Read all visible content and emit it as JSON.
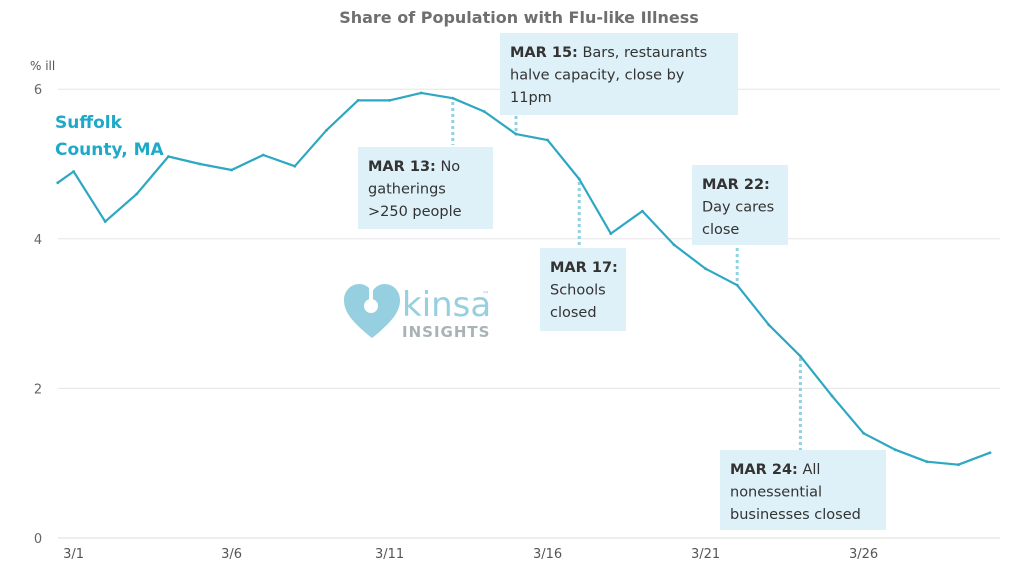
{
  "chart_data": {
    "type": "line",
    "title": "Share of Population with Flu-like Illness",
    "ylabel": "% ill",
    "xlabel": "",
    "ylim": [
      0,
      6
    ],
    "yticks": [
      "0",
      "2",
      "4",
      "6"
    ],
    "grid": true,
    "x_tick_labels": [
      "3/1",
      "3/6",
      "3/11",
      "3/16",
      "3/21",
      "3/26"
    ],
    "x_tick_positions": [
      1,
      6,
      11,
      16,
      21,
      26
    ],
    "series": [
      {
        "name": "Suffolk County, MA",
        "color": "#2ea7c3",
        "x": [
          0.5,
          1,
          2,
          3,
          4,
          5,
          6,
          7,
          8,
          9,
          10,
          11,
          12,
          13,
          14,
          15,
          16,
          17,
          18,
          19,
          20,
          21,
          22,
          23,
          24,
          25,
          26,
          27,
          28,
          29,
          30
        ],
        "values": [
          4.75,
          4.9,
          4.23,
          4.6,
          5.1,
          5.0,
          4.92,
          5.12,
          4.97,
          5.45,
          5.85,
          5.85,
          5.95,
          5.88,
          5.7,
          5.4,
          5.32,
          4.8,
          4.07,
          4.37,
          3.92,
          3.6,
          3.38,
          2.85,
          2.43,
          1.9,
          1.4,
          1.18,
          1.02,
          0.98,
          1.14
        ]
      }
    ],
    "annotations": [
      {
        "date": "MAR 13:",
        "lines": [
          "No",
          "gatherings",
          ">250 people"
        ],
        "x": 13
      },
      {
        "date": "MAR 15:",
        "lines": [
          "Bars, restaurants",
          "halve capacity, close by",
          "11pm"
        ],
        "x": 15
      },
      {
        "date": "MAR 17:",
        "lines": [
          "",
          "Schools",
          "closed"
        ],
        "x": 17
      },
      {
        "date": "MAR 22:",
        "lines": [
          "",
          "Day cares",
          "close"
        ],
        "x": 22
      },
      {
        "date": "MAR 24:",
        "lines": [
          "All",
          "nonessential",
          "businesses closed"
        ],
        "x": 24
      }
    ]
  },
  "logo": {
    "word": "kinsa",
    "sub": "INSIGHTS",
    "trademark": "™"
  },
  "colors": {
    "line": "#2ea7c3",
    "label": "#1fa9c9",
    "box": "#dff1f8",
    "leader": "#90d2e4"
  }
}
